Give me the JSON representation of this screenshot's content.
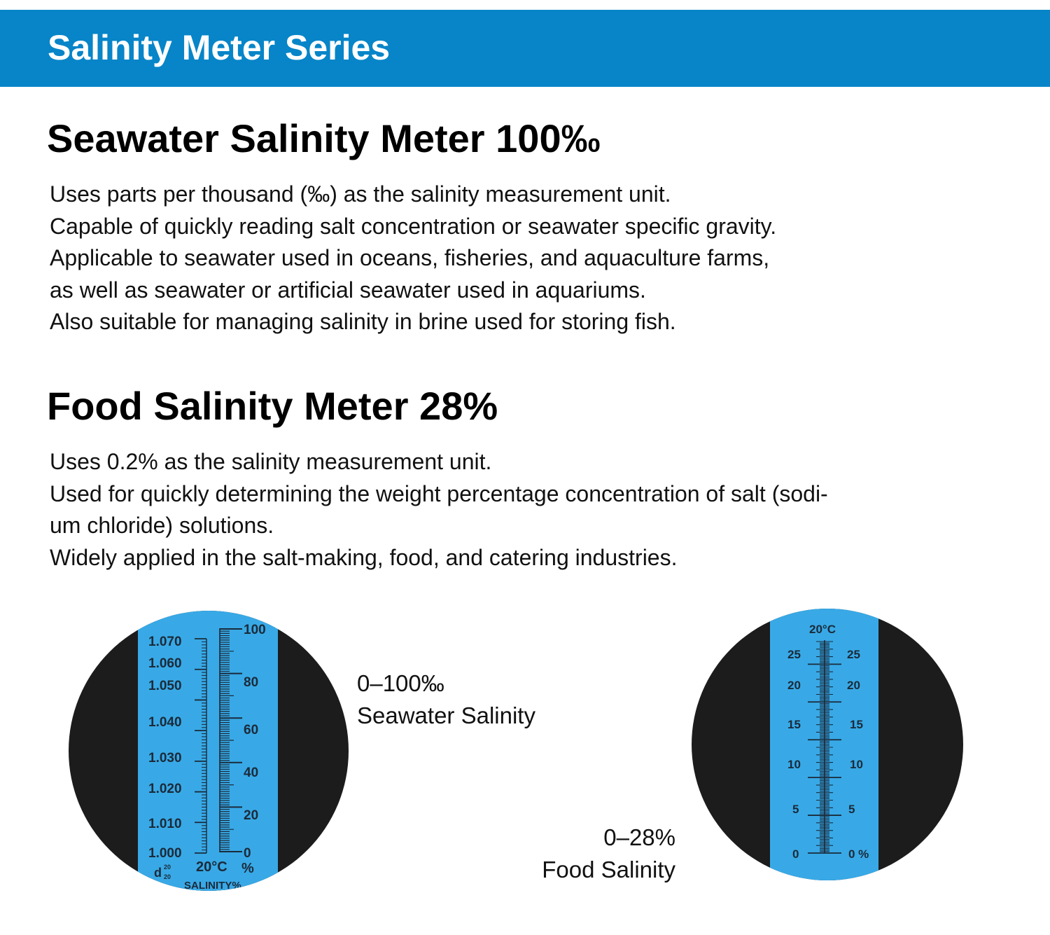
{
  "banner": {
    "title": "Salinity Meter Series",
    "color": "#0785c8"
  },
  "sections": [
    {
      "heading": "Seawater Salinity Meter 100‰",
      "lines": [
        "Uses parts per thousand (‰) as the salinity measurement unit.",
        "Capable of quickly reading salt concentration or seawater specific gravity.",
        "Applicable to seawater used in oceans, fisheries, and aquaculture farms,",
        "as well as seawater or artificial seawater used in aquariums.",
        "Also suitable for managing salinity in brine used for storing fish."
      ]
    },
    {
      "heading": "Food Salinity Meter 28%",
      "lines": [
        "Uses 0.2% as the salinity measurement unit.",
        "Used for quickly determining the weight percentage concentration of salt (sodi-",
        "um chloride) solutions.",
        "Widely applied in the salt-making, food, and catering industries."
      ]
    }
  ],
  "seawater_gauge": {
    "caption_range": "0–100‰",
    "caption_label": "Seawater Salinity",
    "sg_labels": [
      "1.070",
      "1.060",
      "1.050",
      "1.040",
      "1.030",
      "1.020",
      "1.010",
      "1.000"
    ],
    "pct_labels": [
      "100",
      "80",
      "60",
      "40",
      "20",
      "0"
    ],
    "temp_label": "20°C",
    "unit_label": "%",
    "d_label": "d",
    "d_super": "20",
    "d_sub": "20",
    "scale_label": "SALINITY%"
  },
  "food_gauge": {
    "caption_range": "0–28%",
    "caption_label": "Food Salinity",
    "temp_label": "20°C",
    "left_labels": [
      "25",
      "20",
      "15",
      "10",
      "5",
      "0"
    ],
    "right_labels": [
      "25",
      "20",
      "15",
      "10",
      "5",
      "0 %"
    ]
  },
  "colors": {
    "scale_blue": "#38a9e6",
    "field_black": "#1c1c1c",
    "ink": "#1b2a3a"
  }
}
